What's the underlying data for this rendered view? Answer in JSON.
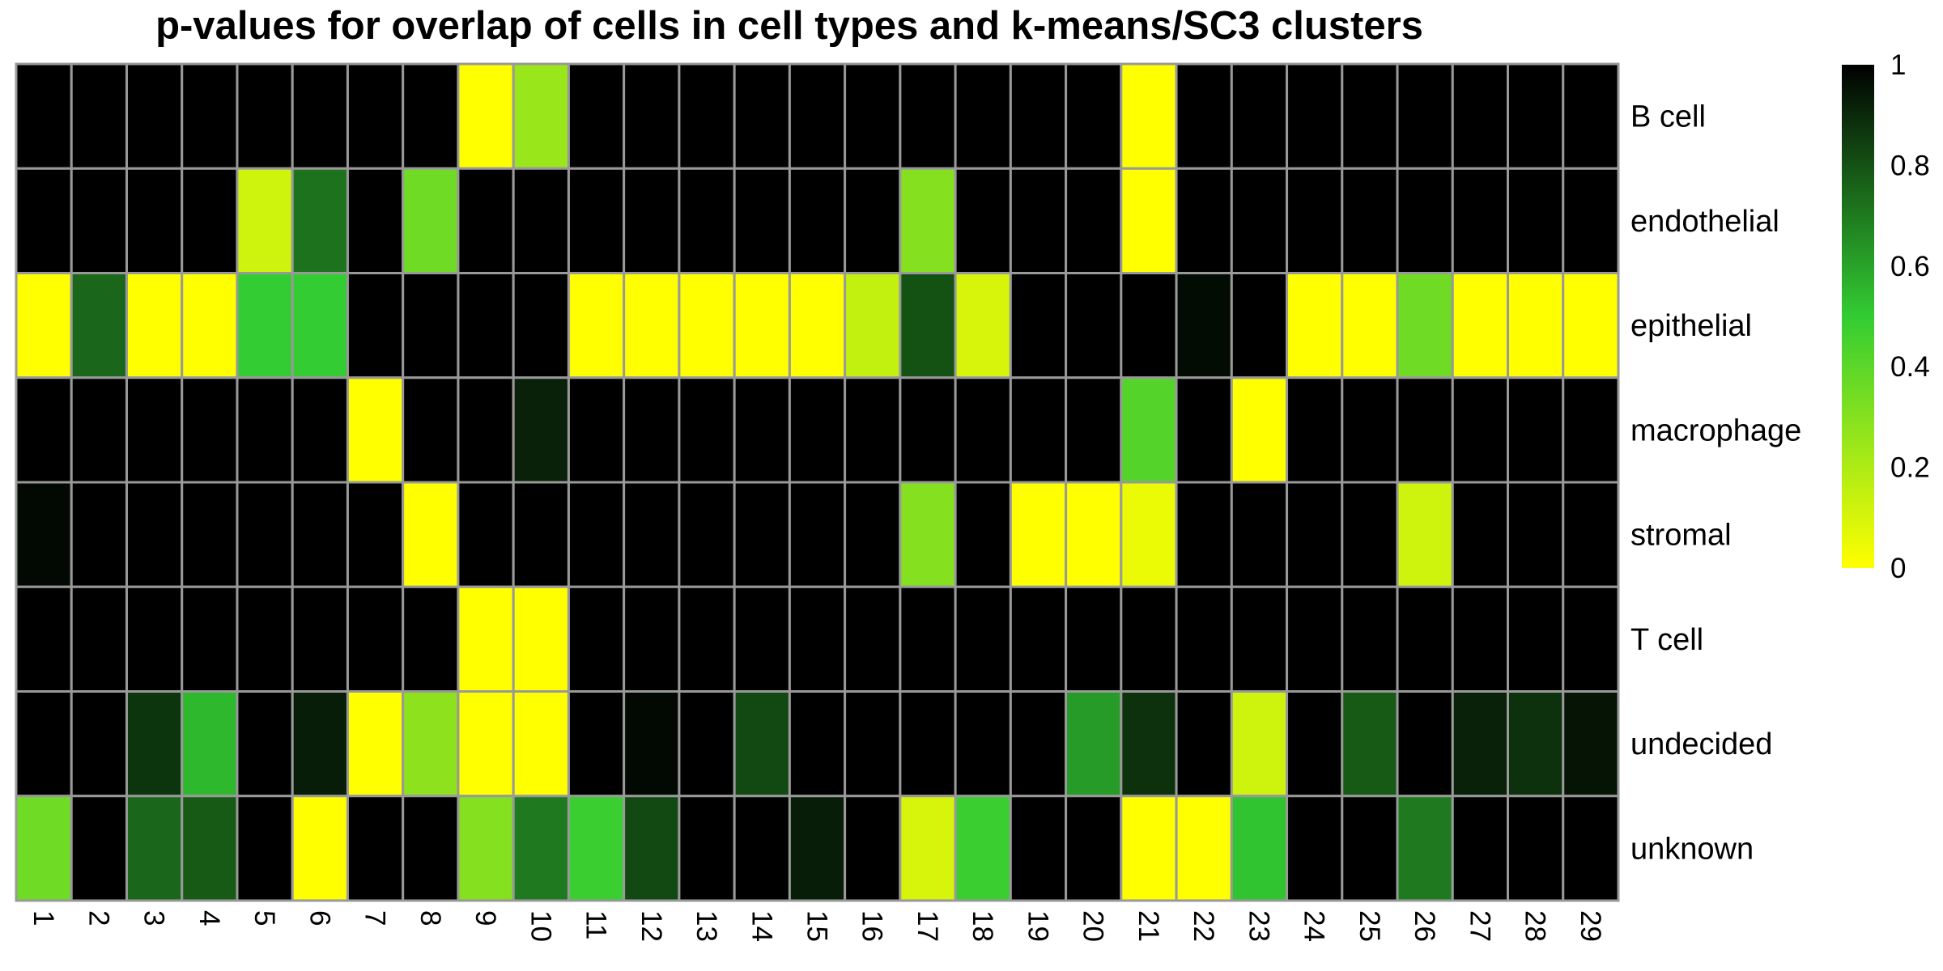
{
  "chart_data": {
    "type": "heatmap",
    "title": "p-values for overlap of cells in cell types and k-means/SC3 clusters",
    "rows": [
      "B cell",
      "endothelial",
      "epithelial",
      "macrophage",
      "stromal",
      "T cell",
      "undecided",
      "unknown"
    ],
    "columns": [
      "1",
      "2",
      "3",
      "4",
      "5",
      "6",
      "7",
      "8",
      "9",
      "10",
      "11",
      "12",
      "13",
      "14",
      "15",
      "16",
      "17",
      "18",
      "19",
      "20",
      "21",
      "22",
      "23",
      "24",
      "25",
      "26",
      "27",
      "28",
      "29"
    ],
    "values": [
      [
        1,
        1,
        1,
        1,
        1,
        1,
        1,
        1,
        0,
        0.25,
        1,
        1,
        1,
        1,
        1,
        1,
        1,
        1,
        1,
        1,
        0,
        1,
        1,
        1,
        1,
        1,
        1,
        1,
        1
      ],
      [
        1,
        1,
        1,
        1,
        0.12,
        0.72,
        1,
        0.35,
        1,
        1,
        1,
        1,
        1,
        1,
        1,
        1,
        0.3,
        1,
        1,
        1,
        0,
        1,
        1,
        1,
        1,
        1,
        1,
        1,
        1
      ],
      [
        0,
        0.75,
        0,
        0,
        0.5,
        0.5,
        1,
        1,
        1,
        1,
        0,
        0,
        0,
        0,
        0,
        0.15,
        0.8,
        0.1,
        1,
        1,
        1,
        0.97,
        1,
        0,
        0,
        0.35,
        0,
        0,
        0
      ],
      [
        1,
        1,
        1,
        1,
        1,
        1,
        0,
        1,
        1,
        0.92,
        1,
        1,
        1,
        1,
        1,
        1,
        1,
        1,
        1,
        1,
        0.42,
        1,
        0,
        1,
        1,
        1,
        1,
        1,
        1
      ],
      [
        0.98,
        1,
        1,
        1,
        1,
        1,
        1,
        0,
        1,
        1,
        1,
        1,
        1,
        1,
        1,
        1,
        0.3,
        1,
        0,
        0,
        0.05,
        1,
        1,
        1,
        1,
        0.12,
        1,
        1,
        1
      ],
      [
        1,
        1,
        1,
        1,
        1,
        1,
        1,
        1,
        0,
        0,
        1,
        1,
        1,
        1,
        1,
        1,
        1,
        1,
        1,
        1,
        1,
        1,
        1,
        1,
        1,
        1,
        1,
        1,
        1
      ],
      [
        1,
        1,
        0.87,
        0.55,
        1,
        0.93,
        0,
        0.28,
        0,
        0,
        1,
        0.98,
        1,
        0.82,
        1,
        1,
        1,
        1,
        1,
        0.62,
        0.88,
        1,
        0.12,
        1,
        0.78,
        1,
        0.92,
        0.88,
        0.95
      ],
      [
        0.35,
        1,
        0.75,
        0.78,
        1,
        0,
        1,
        1,
        0.3,
        0.7,
        0.48,
        0.82,
        1,
        1,
        0.93,
        1,
        0.1,
        0.48,
        1,
        1,
        0,
        0,
        0.52,
        1,
        1,
        0.7,
        1,
        1,
        1
      ]
    ],
    "colorbar": {
      "ticks": [
        "0",
        "0.2",
        "0.4",
        "0.6",
        "0.8",
        "1"
      ],
      "range": [
        0,
        1
      ]
    },
    "colors": {
      "low": "#ffff00",
      "mid": "#33cc33",
      "high": "#000000",
      "grid": "#999999"
    }
  }
}
